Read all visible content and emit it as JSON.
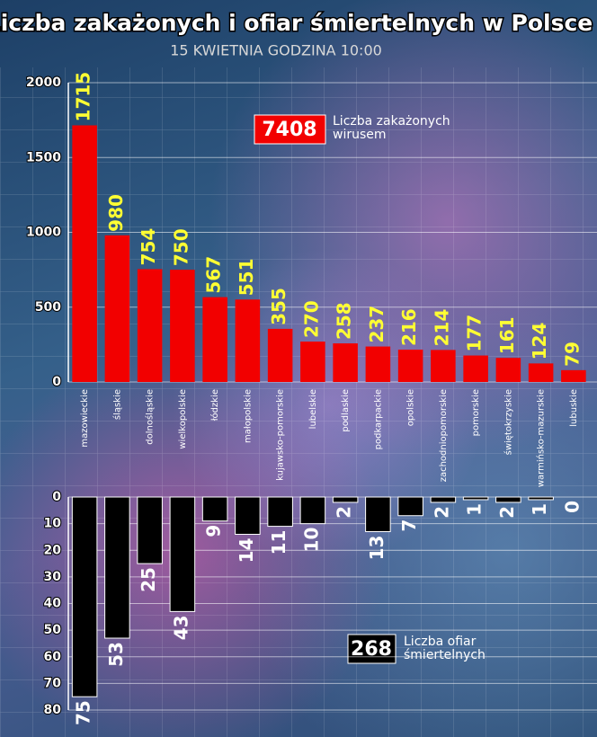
{
  "title": "Liczba zakażonych i ofiar śmiertelnych w Polsce",
  "subtitle": "15 KWIETNIA GODZINA 10:00",
  "chart_data": [
    {
      "type": "bar",
      "annotation_value": "7408",
      "annotation": "Liczba zakażonych wirusem",
      "categories": [
        "mazowieckie",
        "śląskie",
        "dolnośląskie",
        "wielkopolskie",
        "łódzkie",
        "małopolskie",
        "kujawsko-pomorskie",
        "lubelskie",
        "podlaskie",
        "podkarpackie",
        "opolskie",
        "zachodniopomorskie",
        "pomorskie",
        "świętokrzyskie",
        "warmińsko-mazurskie",
        "lubuskie"
      ],
      "values": [
        1715,
        980,
        754,
        750,
        567,
        551,
        355,
        270,
        258,
        237,
        216,
        214,
        177,
        161,
        124,
        79
      ],
      "color": "#f20000",
      "label_color": "#ffff33",
      "ylim": [
        0,
        2000
      ],
      "yticks": [
        0,
        500,
        1000,
        1500,
        2000
      ],
      "inverted": false,
      "grid": true
    },
    {
      "type": "bar",
      "annotation_value": "268",
      "annotation": "Liczba ofiar śmiertelnych",
      "values": [
        75,
        53,
        25,
        43,
        9,
        14,
        11,
        10,
        2,
        13,
        7,
        2,
        1,
        2,
        1,
        0
      ],
      "color": "#000000",
      "label_color": "#ffffff",
      "ylim": [
        0,
        80
      ],
      "yticks": [
        0,
        10,
        20,
        30,
        40,
        50,
        60,
        70,
        80
      ],
      "inverted": true,
      "grid": true
    }
  ]
}
